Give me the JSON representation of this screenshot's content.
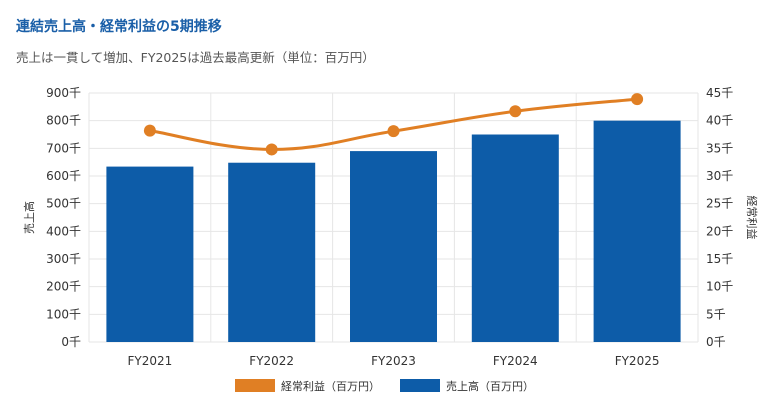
{
  "header": {
    "title": "連結売上高・経常利益の5期推移",
    "subtitle": "売上は一貫して増加、FY2025は過去最高更新（単位：百万円）"
  },
  "chart_data": {
    "type": "bar",
    "categories": [
      "FY2021",
      "FY2022",
      "FY2023",
      "FY2024",
      "FY2025"
    ],
    "series": [
      {
        "name": "売上高（百万円）",
        "type": "bar",
        "axis": "left",
        "color": "#0d5ca8",
        "values": [
          634000,
          648000,
          690000,
          750000,
          800000
        ]
      },
      {
        "name": "経常利益（百万円）",
        "type": "line",
        "axis": "right",
        "color": "#e07f24",
        "values": [
          38200,
          34800,
          38100,
          41700,
          43900
        ]
      }
    ],
    "ylabel_left": "売上高",
    "ylabel_right": "経常利益",
    "ylim_left": [
      0,
      900000
    ],
    "ylim_right": [
      0,
      45000
    ],
    "yticks_left": [
      "0千",
      "100千",
      "200千",
      "300千",
      "400千",
      "500千",
      "600千",
      "700千",
      "800千",
      "900千"
    ],
    "yticks_right": [
      "0千",
      "5千",
      "10千",
      "15千",
      "20千",
      "25千",
      "30千",
      "35千",
      "40千",
      "45千"
    ],
    "legend": [
      "経常利益（百万円）",
      "売上高（百万円）"
    ],
    "legend_position": "bottom",
    "grid": true
  }
}
